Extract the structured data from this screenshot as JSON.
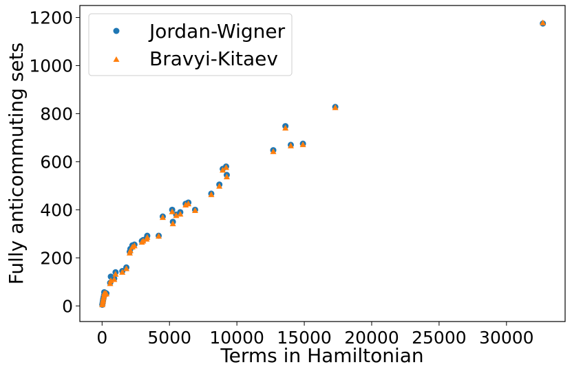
{
  "chart_data": {
    "type": "scatter",
    "title": "",
    "xlabel": "Terms in Hamiltonian",
    "ylabel": "Fully anticommuting sets",
    "xlim": [
      -1650,
      34350
    ],
    "ylim": [
      -65,
      1250
    ],
    "xticks": [
      0,
      5000,
      10000,
      15000,
      20000,
      25000,
      30000
    ],
    "yticks": [
      0,
      200,
      400,
      600,
      800,
      1000,
      1200
    ],
    "grid": false,
    "legend_position": "top-left",
    "series": [
      {
        "name": "Jordan-Wigner",
        "marker": "circle",
        "color": "#1f77b4",
        "points": [
          [
            15,
            5
          ],
          [
            40,
            12
          ],
          [
            60,
            20
          ],
          [
            80,
            28
          ],
          [
            110,
            35
          ],
          [
            140,
            44
          ],
          [
            160,
            57
          ],
          [
            200,
            50
          ],
          [
            260,
            54
          ],
          [
            320,
            52
          ],
          [
            600,
            96
          ],
          [
            650,
            122
          ],
          [
            900,
            114
          ],
          [
            1000,
            140
          ],
          [
            1500,
            145
          ],
          [
            1800,
            160
          ],
          [
            2050,
            225
          ],
          [
            2100,
            237
          ],
          [
            2250,
            252
          ],
          [
            2400,
            255
          ],
          [
            2950,
            270
          ],
          [
            3050,
            274
          ],
          [
            3300,
            282
          ],
          [
            3350,
            292
          ],
          [
            4200,
            292
          ],
          [
            4500,
            372
          ],
          [
            5200,
            400
          ],
          [
            5250,
            350
          ],
          [
            5500,
            380
          ],
          [
            5800,
            390
          ],
          [
            6200,
            425
          ],
          [
            6400,
            430
          ],
          [
            6900,
            400
          ],
          [
            8100,
            467
          ],
          [
            8700,
            505
          ],
          [
            8950,
            570
          ],
          [
            9200,
            580
          ],
          [
            9250,
            545
          ],
          [
            12700,
            648
          ],
          [
            13600,
            748
          ],
          [
            14000,
            670
          ],
          [
            14900,
            675
          ],
          [
            17300,
            828
          ],
          [
            32700,
            1175
          ]
        ]
      },
      {
        "name": "Bravyi-Kitaev",
        "marker": "triangle",
        "color": "#ff7f0e",
        "points": [
          [
            15,
            5
          ],
          [
            40,
            12
          ],
          [
            60,
            20
          ],
          [
            80,
            26
          ],
          [
            110,
            34
          ],
          [
            140,
            42
          ],
          [
            160,
            52
          ],
          [
            200,
            48
          ],
          [
            260,
            52
          ],
          [
            320,
            50
          ],
          [
            600,
            93
          ],
          [
            650,
            105
          ],
          [
            900,
            110
          ],
          [
            1000,
            132
          ],
          [
            1500,
            140
          ],
          [
            1800,
            155
          ],
          [
            2050,
            220
          ],
          [
            2100,
            230
          ],
          [
            2250,
            245
          ],
          [
            2400,
            250
          ],
          [
            2950,
            265
          ],
          [
            3050,
            270
          ],
          [
            3300,
            278
          ],
          [
            3350,
            285
          ],
          [
            4200,
            290
          ],
          [
            4500,
            368
          ],
          [
            5200,
            392
          ],
          [
            5250,
            342
          ],
          [
            5500,
            376
          ],
          [
            5800,
            382
          ],
          [
            6200,
            420
          ],
          [
            6400,
            425
          ],
          [
            6900,
            397
          ],
          [
            8100,
            463
          ],
          [
            8700,
            498
          ],
          [
            8950,
            565
          ],
          [
            9200,
            576
          ],
          [
            9250,
            537
          ],
          [
            12700,
            642
          ],
          [
            13600,
            740
          ],
          [
            14000,
            666
          ],
          [
            14900,
            671
          ],
          [
            17300,
            825
          ],
          [
            32700,
            1178
          ]
        ]
      }
    ]
  }
}
